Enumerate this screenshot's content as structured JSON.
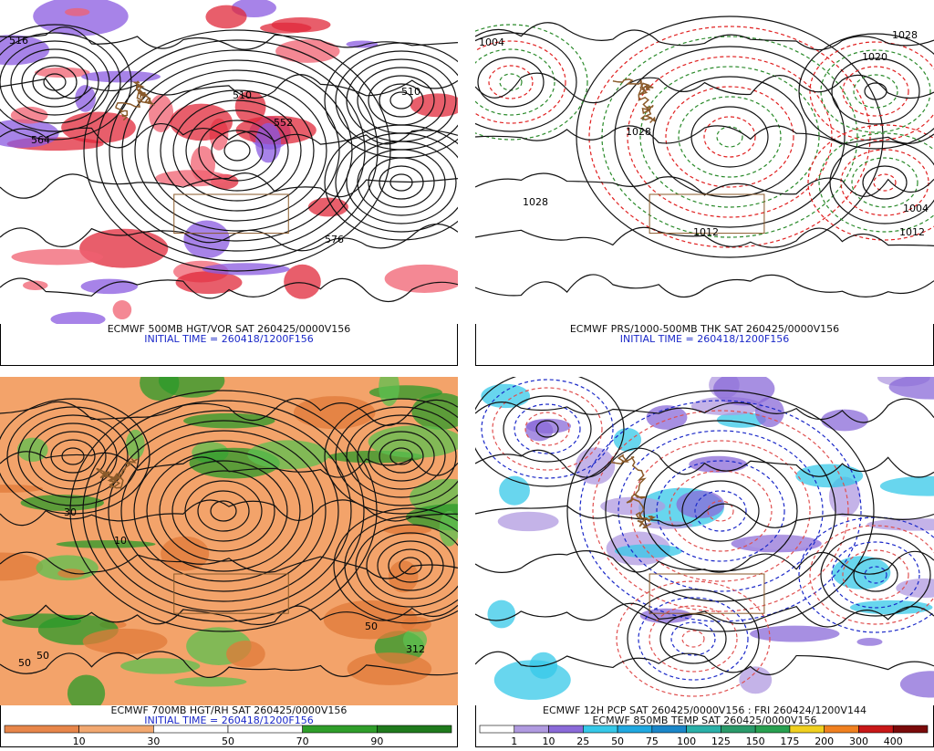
{
  "panels": [
    {
      "caption": "ECMWF 500MB HGT/VOR SAT 260425/0000V156",
      "initial_time": "INITIAL TIME = 260418/1200F156",
      "map_labels": [
        "516",
        "510",
        "564",
        "576",
        "552",
        "510"
      ]
    },
    {
      "caption": "ECMWF PRS/1000-500MB THK SAT 260425/0000V156",
      "initial_time": "INITIAL TIME = 260418/1200F156",
      "map_labels": [
        "1004",
        "1028",
        "1020",
        "1028",
        "1028",
        "1012",
        "1012",
        "1004"
      ]
    },
    {
      "caption": "ECMWF 700MB HGT/RH SAT 260425/0000V156",
      "initial_time": "INITIAL TIME = 260418/1200F156",
      "map_labels": [
        "30",
        "10",
        "50",
        "312",
        "50",
        "50"
      ],
      "colorbar": {
        "labels": [
          "10",
          "30",
          "50",
          "70",
          "90"
        ],
        "colors": [
          "#e8864a",
          "#f2a870",
          "#ffffff",
          "#ffffff",
          "#2f9e2a",
          "#1f7a1c"
        ]
      }
    },
    {
      "caption": "ECMWF 12H PCP SAT 260425/0000V156 : FRI 260424/1200V144",
      "initial_time": "ECMWF 850MB TEMP SAT 260425/0000V156",
      "colorbar": {
        "labels": [
          "1",
          "10",
          "25",
          "50",
          "75",
          "100",
          "125",
          "150",
          "175",
          "200",
          "300",
          "400"
        ],
        "colors": [
          "#ffffff",
          "#b09ae0",
          "#8a6ad8",
          "#36c8e8",
          "#20a8e0",
          "#1a86c8",
          "#2ab0a8",
          "#2a9a6a",
          "#28a050",
          "#f0d020",
          "#f08020",
          "#c81818",
          "#7a0a0a"
        ]
      }
    }
  ]
}
